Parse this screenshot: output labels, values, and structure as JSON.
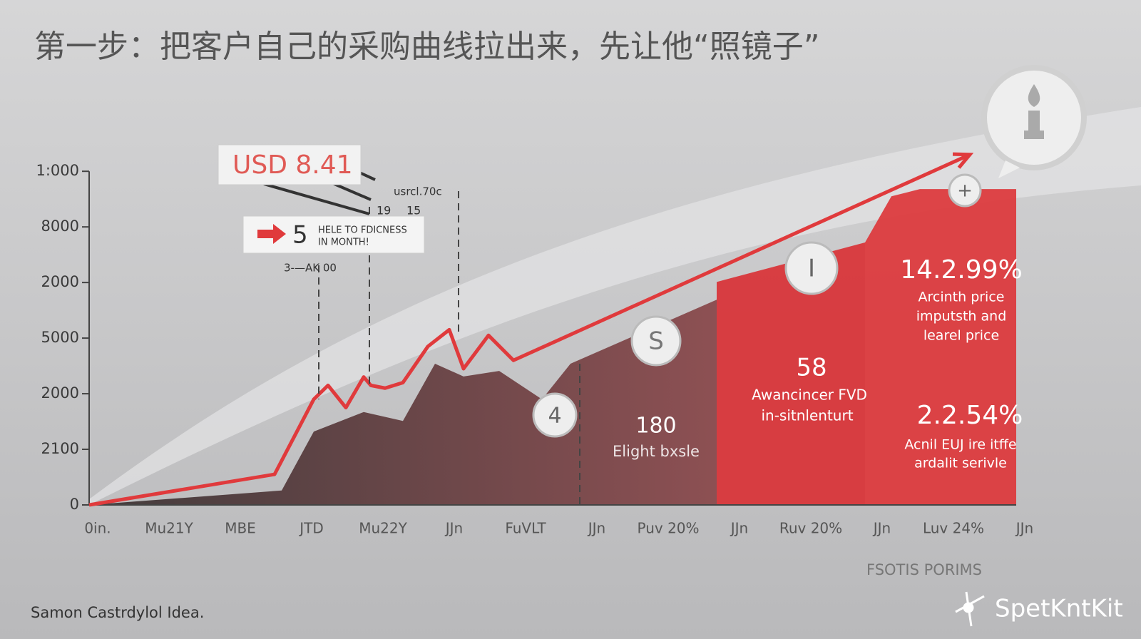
{
  "chart_data": {
    "type": "line",
    "title": "第一步：把客户自己的采购曲线拉出来，先让他“照镜子”",
    "categories": [
      "0in.",
      "Mu21Y",
      "MBE",
      "JTD",
      "Mu22Y",
      "JJn",
      "FuVLT",
      "JJn",
      "Puv 20%",
      "JJn",
      "Ruv 20%",
      "JJn",
      "Luv 24%",
      "JJn"
    ],
    "xlim": [
      0,
      13
    ],
    "ylim": [
      0,
      6.4
    ],
    "yticks": [
      0,
      {
        "value": 1,
        "label": "2100"
      },
      {
        "value": 2,
        "label": "2000"
      },
      {
        "value": 3,
        "label": "5000"
      },
      {
        "value": 4,
        "label": "2000"
      },
      {
        "value": 5,
        "label": "8000"
      },
      {
        "value": 6,
        "label": "1:000"
      }
    ],
    "series": [
      {
        "color": "#e03a3c",
        "x": [
          0,
          2.6,
          3.15,
          3.35,
          3.6,
          3.85,
          3.95,
          4.15,
          4.4,
          4.75,
          5.05,
          5.25,
          5.6,
          5.95,
          12.35
        ],
        "values": [
          0,
          0.55,
          1.9,
          2.15,
          1.75,
          2.3,
          2.15,
          2.1,
          2.2,
          2.85,
          3.15,
          2.45,
          3.05,
          2.6,
          6.3
        ]
      }
    ],
    "areas": [
      {
        "color": "#6e3a3e",
        "x": [
          0,
          2.7,
          3.15,
          3.85,
          4.4,
          4.85,
          5.25,
          5.75,
          6.35,
          6.75,
          8.8
        ],
        "values": [
          0,
          0.26,
          1.32,
          1.67,
          1.51,
          2.54,
          2.31,
          2.41,
          1.9,
          2.54,
          3.69
        ]
      },
      {
        "color": "#d8363a",
        "x": [
          8.8,
          10.88
        ],
        "values": [
          4.01,
          4.72
        ]
      },
      {
        "color": "#dc3b3e",
        "x": [
          10.88,
          11.25,
          11.65,
          13
        ],
        "values": [
          4.72,
          5.55,
          5.68,
          5.68
        ]
      }
    ],
    "annotations": {
      "price_box": "USD 8.41",
      "price_small": "usrcl.70c",
      "n1": "19",
      "n2": "15",
      "note_number": "5",
      "note_line1": "HELE TO FDICNESS",
      "note_line2": "IN MONTH!",
      "note_sub": "3-—AK 00",
      "badge_s": "S",
      "badge_4": "4",
      "badge_i": "I",
      "badge_plus": "+",
      "block1_value": "180",
      "block1_text": "Elight bxsle",
      "block2_value": "58",
      "block2_line1": "Awancincer FVD",
      "block2_line2": "in-sitnlenturt",
      "block3_value": "14.2.99%",
      "block3_line1": "Arcinth price",
      "block3_line2": "imputsth and",
      "block3_line3": "learel price",
      "block4_value": "2.2.54%",
      "block4_line1": "Acnil EUJ ire itffe",
      "block4_line2": "ardalit serivle",
      "x_note": "FSOTIS PORIMS"
    },
    "source": "Samon Castrdylol Idea.",
    "brand": "SpetKntKit"
  }
}
